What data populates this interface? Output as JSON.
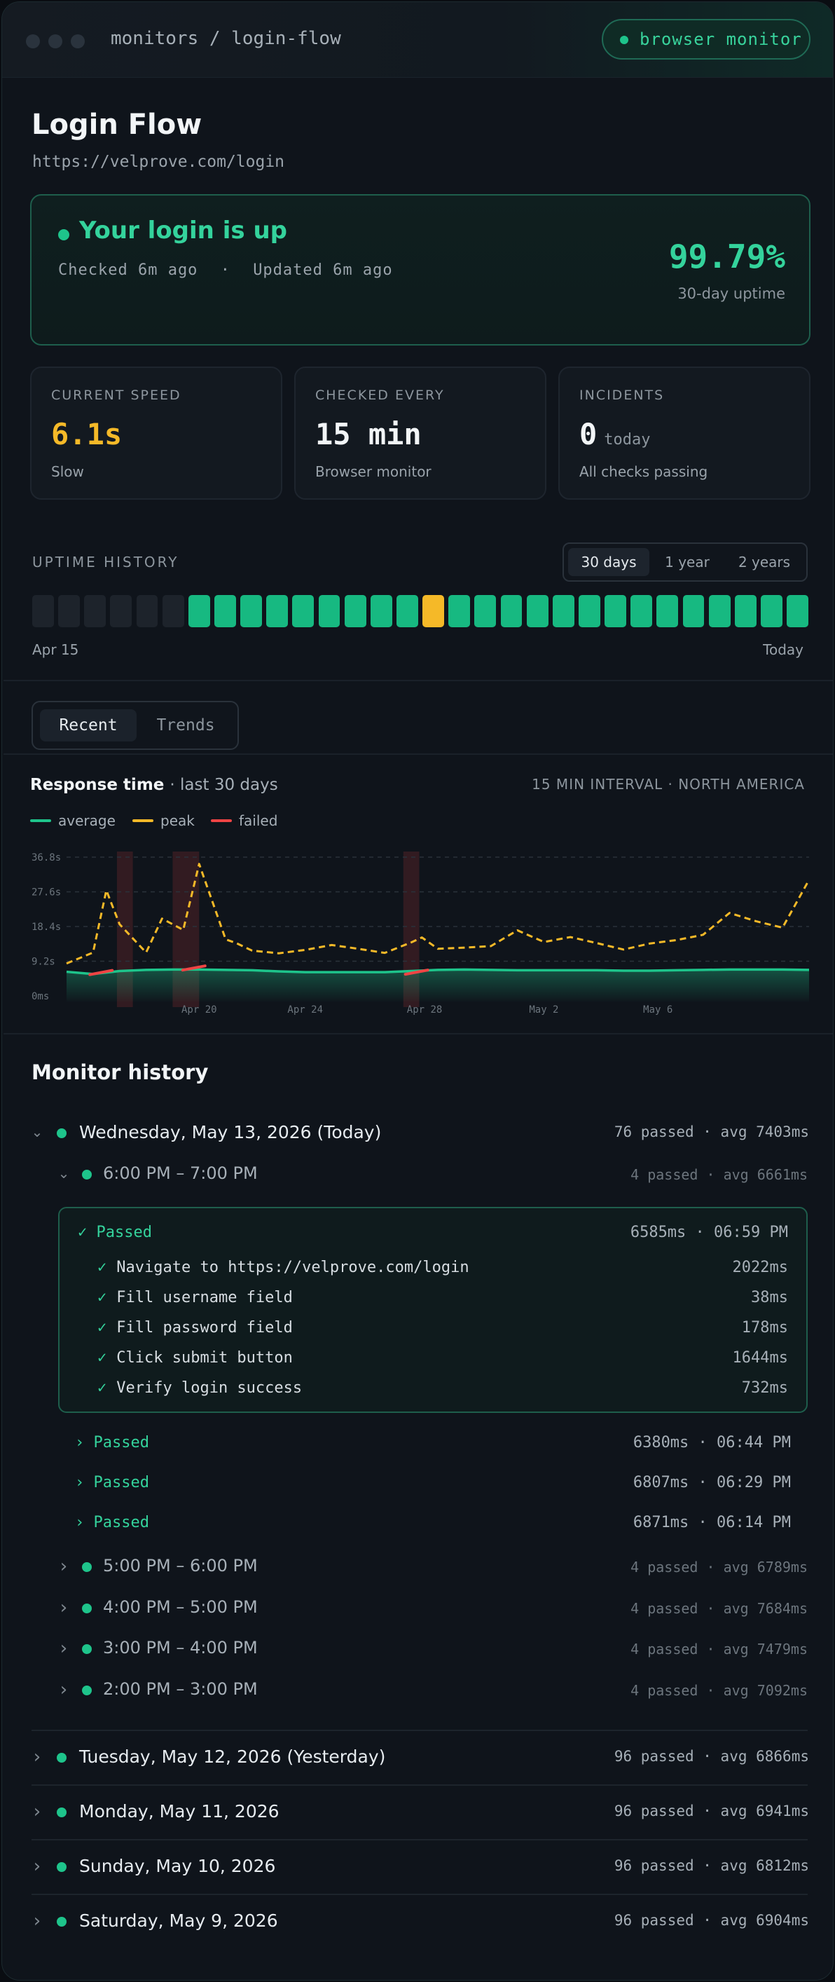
{
  "header": {
    "breadcrumb": "monitors / login-flow",
    "badge": "browser monitor"
  },
  "monitor": {
    "name": "Login Flow",
    "url": "https://velprove.com/login"
  },
  "status": {
    "title": "Your login is up",
    "checked": "Checked 6m ago",
    "sep": "·",
    "updated": "Updated 6m ago",
    "uptime": "99.79%",
    "uptime_label": "30-day uptime"
  },
  "stats": [
    {
      "label": "CURRENT SPEED",
      "value": "6.1s",
      "unit": "",
      "sub": "Slow",
      "color": "#f5b928"
    },
    {
      "label": "CHECKED EVERY",
      "value": "15 min",
      "unit": "",
      "sub": "Browser monitor",
      "color": "#f2f5f7"
    },
    {
      "label": "INCIDENTS",
      "value": "0",
      "unit": "today",
      "sub": "All checks passing",
      "color": "#f2f5f7"
    }
  ],
  "uptime_history": {
    "label": "UPTIME HISTORY",
    "ranges": [
      "30 days",
      "1 year",
      "2 years"
    ],
    "selected": "30 days",
    "days": [
      "none",
      "none",
      "none",
      "none",
      "none",
      "none",
      "up",
      "up",
      "up",
      "up",
      "up",
      "up",
      "up",
      "up",
      "up",
      "degraded",
      "up",
      "up",
      "up",
      "up",
      "up",
      "up",
      "up",
      "up",
      "up",
      "up",
      "up",
      "up",
      "up",
      "up"
    ],
    "start_label": "Apr 15",
    "end_label": "Today",
    "colors": {
      "up": "#17b981",
      "degraded": "#f5b928",
      "none": "#1d232b"
    }
  },
  "tabs": [
    "Recent",
    "Trends"
  ],
  "response_chart": {
    "title": "Response time",
    "subtitle": "· last 30 days",
    "meta": "15 MIN INTERVAL · NORTH AMERICA",
    "legend": [
      "average",
      "peak",
      "failed"
    ]
  },
  "chart_data": {
    "type": "line",
    "title": "Response time",
    "y_ticks": [
      "36.8s",
      "27.6s",
      "18.4s",
      "9.2s",
      "0ms"
    ],
    "ylim": [
      0,
      36.8
    ],
    "x_ticks": [
      {
        "label": "Apr 20",
        "day": 5
      },
      {
        "label": "Apr 24",
        "day": 9
      },
      {
        "label": "Apr 28",
        "day": 13.5
      },
      {
        "label": "May 2",
        "day": 18
      },
      {
        "label": "May 6",
        "day": 22.3
      }
    ],
    "x_range": [
      0,
      28
    ],
    "series": [
      {
        "name": "average",
        "color": "#1ec48b",
        "x": [
          0,
          1,
          2,
          3,
          4,
          5,
          6,
          7,
          8,
          9,
          10,
          11,
          12,
          13,
          14,
          15,
          16,
          17,
          18,
          19,
          20,
          21,
          22,
          23,
          24,
          25,
          26,
          27,
          28
        ],
        "y": [
          6.4,
          5.8,
          6.6,
          6.9,
          7.0,
          7.0,
          6.9,
          6.8,
          6.5,
          6.3,
          6.3,
          6.3,
          6.3,
          6.6,
          6.9,
          7.0,
          6.9,
          6.8,
          6.8,
          6.8,
          6.8,
          6.7,
          6.7,
          6.8,
          6.9,
          7.0,
          7.0,
          7.0,
          6.9
        ]
      },
      {
        "name": "peak",
        "color": "#f5b928",
        "x": [
          0,
          1,
          1.5,
          2,
          3,
          3.6,
          4.4,
          5,
          6,
          6.4,
          7,
          8,
          9,
          10,
          11,
          12,
          13,
          13.4,
          14,
          15,
          16,
          17,
          18,
          19,
          20,
          21,
          22,
          23,
          24,
          25,
          26,
          27,
          28
        ],
        "y": [
          8.6,
          11.5,
          28.0,
          19.0,
          11.5,
          20.5,
          17.5,
          35.0,
          15.0,
          14.0,
          12.0,
          11.3,
          12.2,
          13.5,
          12.5,
          11.4,
          14.2,
          15.5,
          12.5,
          12.8,
          13.2,
          17.4,
          14.3,
          15.6,
          14.0,
          12.3,
          13.9,
          14.8,
          16.2,
          22.0,
          19.8,
          18.1,
          30.8
        ]
      },
      {
        "name": "failed",
        "color": "#ef4444",
        "x": [
          1.3,
          4.8,
          13.2
        ],
        "y": [
          6.2,
          7.4,
          6.3
        ]
      }
    ],
    "failed_bands": [
      [
        1.9,
        2.5
      ],
      [
        4.0,
        5.0
      ],
      [
        12.7,
        13.3
      ]
    ]
  },
  "history": {
    "title": "Monitor history",
    "today": {
      "label": "Wednesday, May 13, 2026 (Today)",
      "meta": "76 passed · avg 7403ms"
    },
    "open_hour": {
      "label": "6:00 PM – 7:00 PM",
      "meta": "4 passed · avg 6661ms"
    },
    "expanded_run": {
      "status": "✓ Passed",
      "meta": "6585ms · 06:59 PM",
      "steps": [
        {
          "check": "✓",
          "label": "Navigate to https://velprove.com/login",
          "ms": "2022ms"
        },
        {
          "check": "✓",
          "label": "Fill username field",
          "ms": "38ms"
        },
        {
          "check": "✓",
          "label": "Fill password field",
          "ms": "178ms"
        },
        {
          "check": "✓",
          "label": "Click submit button",
          "ms": "1644ms"
        },
        {
          "check": "✓",
          "label": "Verify login success",
          "ms": "732ms"
        }
      ]
    },
    "runs": [
      {
        "label": "› Passed",
        "meta": "6380ms · 06:44 PM"
      },
      {
        "label": "› Passed",
        "meta": "6807ms · 06:29 PM"
      },
      {
        "label": "› Passed",
        "meta": "6871ms · 06:14 PM"
      }
    ],
    "hours": [
      {
        "label": "5:00 PM – 6:00 PM",
        "meta": "4 passed · avg 6789ms"
      },
      {
        "label": "4:00 PM – 5:00 PM",
        "meta": "4 passed · avg 7684ms"
      },
      {
        "label": "3:00 PM – 4:00 PM",
        "meta": "4 passed · avg 7479ms"
      },
      {
        "label": "2:00 PM – 3:00 PM",
        "meta": "4 passed · avg 7092ms"
      }
    ],
    "days": [
      {
        "label": "Tuesday, May 12, 2026 (Yesterday)",
        "meta": "96 passed · avg 6866ms"
      },
      {
        "label": "Monday, May 11, 2026",
        "meta": "96 passed · avg 6941ms"
      },
      {
        "label": "Sunday, May 10, 2026",
        "meta": "96 passed · avg 6812ms"
      },
      {
        "label": "Saturday, May 9, 2026",
        "meta": "96 passed · avg 6904ms"
      }
    ]
  }
}
